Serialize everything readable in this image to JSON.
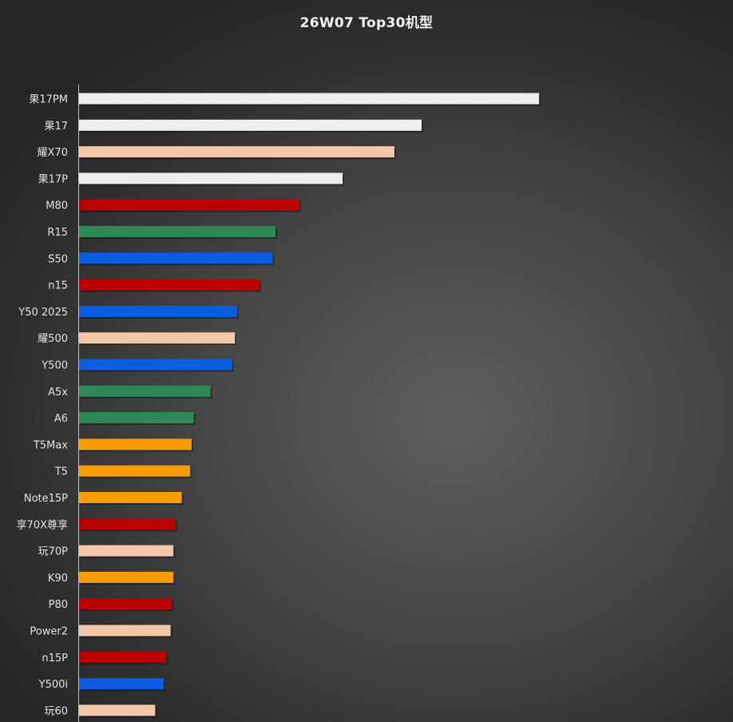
{
  "chart_data": {
    "type": "bar",
    "orientation": "horizontal",
    "title": "26W07 Top30机型",
    "categories": [
      "果17PM",
      "果17",
      "耀X70",
      "果17P",
      "M80",
      "R15",
      "S50",
      "n15",
      "Y50 2025",
      "耀500",
      "Y500",
      "A5x",
      "A6",
      "T5Max",
      "T5",
      "Note15P",
      "享70X尊享",
      "玩70P",
      "K90",
      "P80",
      "Power2",
      "n15P",
      "Y500i",
      "玩60"
    ],
    "values": [
      658,
      490,
      451,
      377,
      315,
      281,
      277,
      258,
      226,
      223,
      219,
      188,
      164,
      161,
      159,
      147,
      138,
      135,
      135,
      133,
      131,
      125,
      121,
      109
    ],
    "bar_colors": [
      "#f2f2f2",
      "#f2f2f2",
      "#f9cbad",
      "#f2f2f2",
      "#c00000",
      "#2e8b57",
      "#0a5fe6",
      "#c00000",
      "#0a5fe6",
      "#f9cbad",
      "#0a5fe6",
      "#2e8b57",
      "#2e8b57",
      "#ffa000",
      "#ffa000",
      "#ffa000",
      "#c00000",
      "#f9cbad",
      "#ffa000",
      "#c00000",
      "#f9cbad",
      "#c00000",
      "#0a5fe6",
      "#f9cbad"
    ],
    "xlim": [
      0,
      820
    ],
    "axis_labels_visible": false,
    "grid": false,
    "legend": "none"
  }
}
